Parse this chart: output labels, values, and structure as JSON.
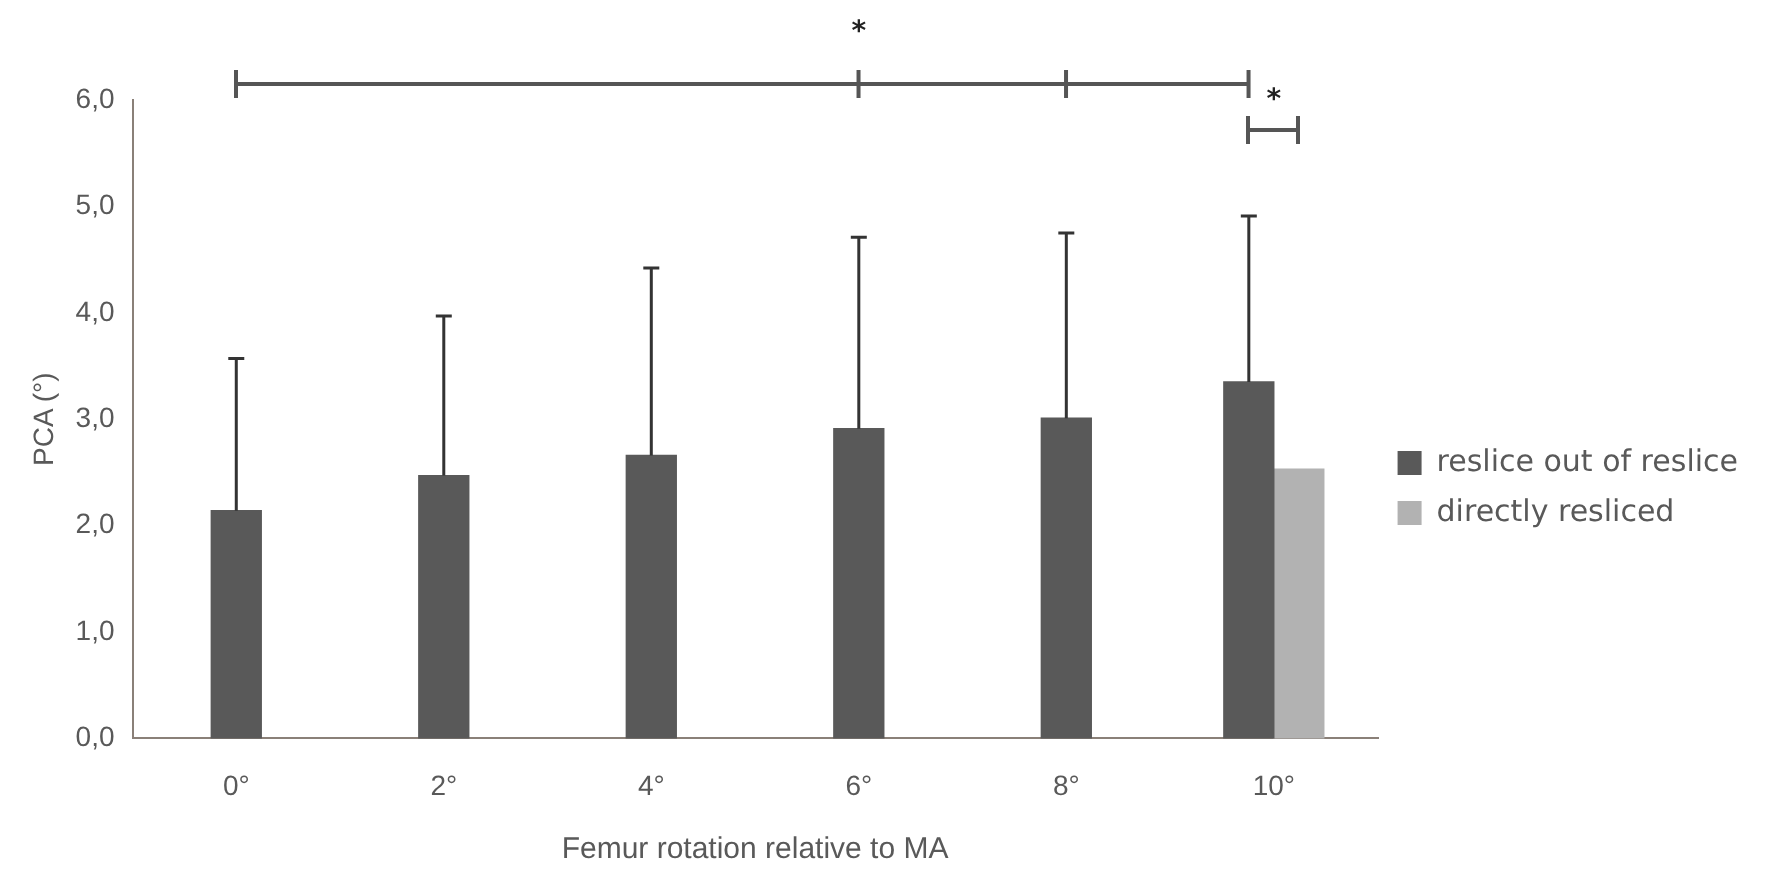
{
  "chart_data": {
    "type": "bar",
    "xlabel": "Femur rotation relative to MA",
    "ylabel": "PCA (°)",
    "categories": [
      "0°",
      "2°",
      "4°",
      "6°",
      "8°",
      "10°"
    ],
    "series": [
      {
        "name": "reslice out of reslice",
        "color": "#595959",
        "values": [
          2.14,
          2.47,
          2.66,
          2.91,
          3.01,
          3.35
        ],
        "errors": [
          [
            2.14,
            3.57
          ],
          [
            2.47,
            3.97
          ],
          [
            2.66,
            4.42
          ],
          [
            2.91,
            4.71
          ],
          [
            3.01,
            4.75
          ],
          [
            3.35,
            4.91
          ]
        ]
      },
      {
        "name": "directly resliced",
        "color": "#b2b2b2",
        "values": [
          null,
          null,
          null,
          null,
          null,
          2.53
        ]
      }
    ],
    "ylim": [
      0,
      6
    ],
    "yticks": [
      {
        "value": 0,
        "label": "0,0"
      },
      {
        "value": 1,
        "label": "1,0"
      },
      {
        "value": 2,
        "label": "2,0"
      },
      {
        "value": 3,
        "label": "3,0"
      },
      {
        "value": 4,
        "label": "4,0"
      },
      {
        "value": 5,
        "label": "5,0"
      },
      {
        "value": 6,
        "label": "6,0"
      }
    ],
    "grid": false,
    "legend": "right",
    "annotations": [
      "*",
      "*"
    ]
  }
}
